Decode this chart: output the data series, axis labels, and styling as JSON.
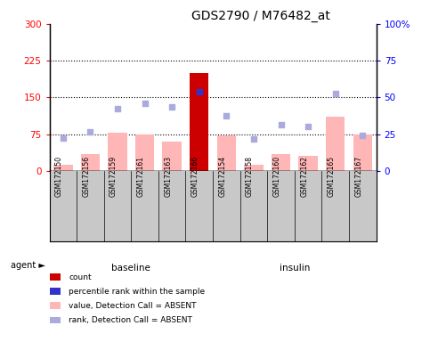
{
  "title": "GDS2790 / M76482_at",
  "samples": [
    "GSM172150",
    "GSM172156",
    "GSM172159",
    "GSM172161",
    "GSM172163",
    "GSM172166",
    "GSM172154",
    "GSM172158",
    "GSM172160",
    "GSM172162",
    "GSM172165",
    "GSM172167"
  ],
  "groups": [
    "baseline",
    "baseline",
    "baseline",
    "baseline",
    "baseline",
    "baseline",
    "insulin",
    "insulin",
    "insulin",
    "insulin",
    "insulin",
    "insulin"
  ],
  "bar_values_pink": [
    12,
    35,
    78,
    75,
    60,
    200,
    72,
    12,
    35,
    30,
    110,
    75
  ],
  "bar_colors_pink": [
    "#FFB6B6",
    "#FFB6B6",
    "#FFB6B6",
    "#FFB6B6",
    "#FFB6B6",
    "#CC0000",
    "#FFB6B6",
    "#FFB6B6",
    "#FFB6B6",
    "#FFB6B6",
    "#FFB6B6",
    "#FFB6B6"
  ],
  "rank_dots_blue": [
    68,
    80,
    128,
    138,
    130,
    162,
    113,
    65,
    95,
    90,
    158,
    72
  ],
  "rank_dot_colors": [
    "#AAAADD",
    "#AAAADD",
    "#AAAADD",
    "#AAAADD",
    "#AAAADD",
    "#3333CC",
    "#AAAADD",
    "#AAAADD",
    "#AAAADD",
    "#AAAADD",
    "#AAAADD",
    "#AAAADD"
  ],
  "ylim_left": [
    0,
    300
  ],
  "ylim_right": [
    0,
    100
  ],
  "yticks_left": [
    0,
    75,
    150,
    225,
    300
  ],
  "yticks_right": [
    0,
    25,
    50,
    75,
    100
  ],
  "ytick_labels_right": [
    "0",
    "25",
    "50",
    "75",
    "100%"
  ],
  "hlines": [
    75,
    150,
    225
  ],
  "title_fontsize": 10,
  "legend_items": [
    "count",
    "percentile rank within the sample",
    "value, Detection Call = ABSENT",
    "rank, Detection Call = ABSENT"
  ],
  "legend_colors": [
    "#CC0000",
    "#3333CC",
    "#FFB6B6",
    "#AAAADD"
  ],
  "baseline_color": "#AAEEBB",
  "insulin_color": "#33EE33",
  "label_bg_color": "#C8C8C8"
}
